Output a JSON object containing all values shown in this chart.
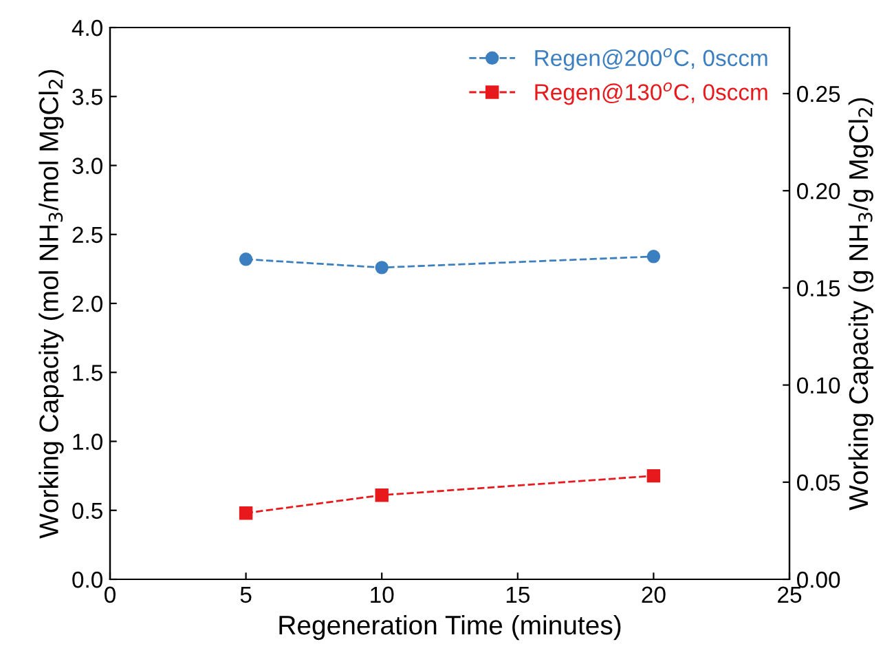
{
  "chart_data": {
    "type": "line",
    "xlabel": "Regeneration Time (minutes)",
    "ylabel": "Working Capacity (mol NH$_{3}$/mol MgCl$_{2}$)",
    "y2label": "Working Capacity (g NH$_{3}$/g MgCl$_{2}$)",
    "x": [
      5,
      10,
      20
    ],
    "series": [
      {
        "name": "Regen@200$^{o}$C, 0sccm",
        "color": "#3b7fc0",
        "marker": "circle",
        "values": [
          2.32,
          2.26,
          2.34
        ]
      },
      {
        "name": "Regen@130$^{o}$C, 0sccm",
        "color": "#e8191c",
        "marker": "square",
        "values": [
          0.48,
          0.61,
          0.75
        ]
      }
    ],
    "xlim": [
      0,
      25
    ],
    "xticks": [
      0,
      5,
      10,
      15,
      20,
      25
    ],
    "ylim": [
      0,
      4.0
    ],
    "yticks": [
      {
        "value": 0,
        "label": "0.0"
      },
      {
        "value": 0.5,
        "label": "0.5"
      },
      {
        "value": 1,
        "label": "1.0"
      },
      {
        "value": 1.5,
        "label": "1.5"
      },
      {
        "value": 2,
        "label": "2.0"
      },
      {
        "value": 2.5,
        "label": "2.5"
      },
      {
        "value": 3,
        "label": "3.0"
      },
      {
        "value": 3.5,
        "label": "3.5"
      },
      {
        "value": 4,
        "label": "4.0"
      }
    ],
    "y2lim": [
      0,
      0.284
    ],
    "y2ticks": [
      {
        "value": 0,
        "label": "0.00"
      },
      {
        "value": 0.05,
        "label": "0.05"
      },
      {
        "value": 0.1,
        "label": "0.10"
      },
      {
        "value": 0.15,
        "label": "0.15"
      },
      {
        "value": 0.2,
        "label": "0.20"
      },
      {
        "value": 0.25,
        "label": "0.25"
      }
    ],
    "line_style": "dashed",
    "legend": "top right",
    "grid": false
  }
}
